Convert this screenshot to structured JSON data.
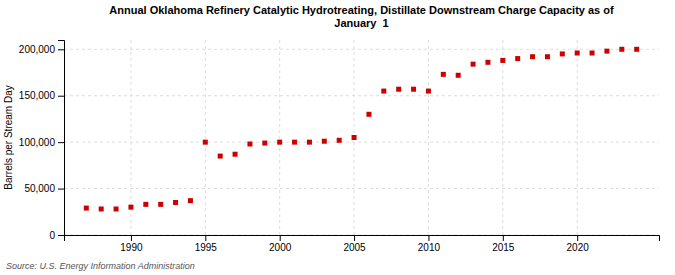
{
  "chart_data": {
    "type": "scatter",
    "title": "Annual Oklahoma Refinery Catalytic Hydrotreating, Distillate Downstream Charge Capacity as of\nJanuary  1",
    "ylabel": "Barrels per Stream Day",
    "annotations": [
      "Source: U.S. Energy Information Administration"
    ],
    "color": "#cc0000",
    "marker": "square",
    "grid": true,
    "x": [
      1987,
      1988,
      1989,
      1990,
      1991,
      1992,
      1993,
      1994,
      1995,
      1996,
      1997,
      1998,
      1999,
      2000,
      2001,
      2002,
      2003,
      2004,
      2005,
      2006,
      2007,
      2008,
      2009,
      2010,
      2011,
      2012,
      2013,
      2014,
      2015,
      2016,
      2017,
      2018,
      2019,
      2020,
      2021,
      2022,
      2023,
      2024
    ],
    "values": [
      29000,
      28000,
      28000,
      30000,
      33000,
      33000,
      35000,
      37000,
      100000,
      85000,
      87000,
      98000,
      99000,
      100000,
      100000,
      100000,
      101000,
      102000,
      105000,
      130000,
      155000,
      157000,
      157000,
      155000,
      173000,
      172000,
      184000,
      186000,
      188000,
      190000,
      192000,
      192000,
      195000,
      196000,
      196000,
      198000,
      200000,
      200000
    ],
    "xlim": [
      1985.5,
      2025.5
    ],
    "xticks": [
      1990,
      1995,
      2000,
      2005,
      2010,
      2015,
      2020
    ],
    "ylim": [
      0,
      210000
    ],
    "yticks": [
      0,
      {
        "value": 50000,
        "label": "50,000"
      },
      {
        "value": 100000,
        "label": "100,000"
      },
      {
        "value": 150000,
        "label": "150,000"
      },
      {
        "value": 200000,
        "label": "200,000"
      }
    ]
  }
}
